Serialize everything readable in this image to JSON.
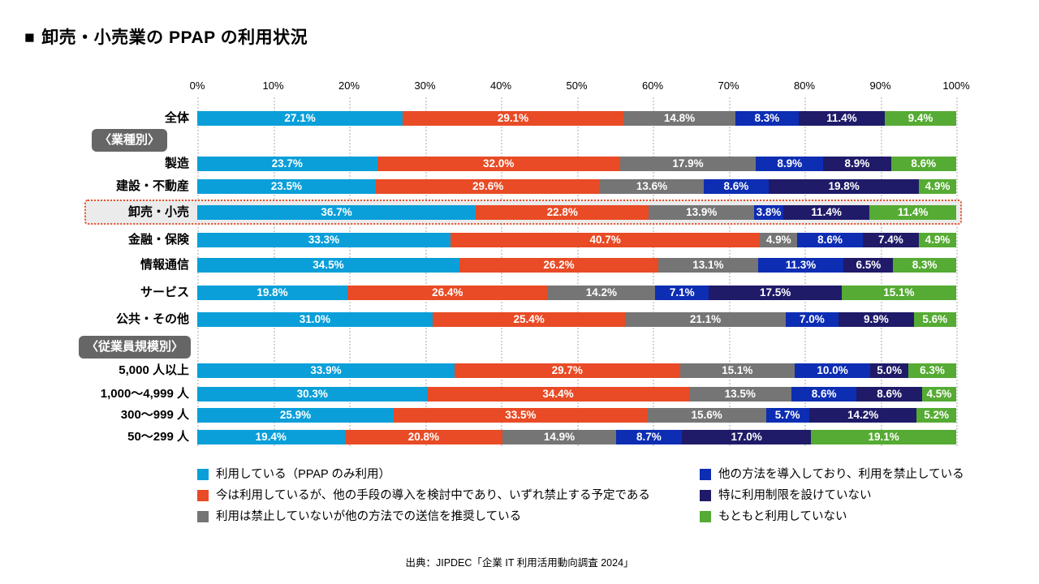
{
  "title": {
    "bullet": "■",
    "text": "卸売・小売業の PPAP の利用状況"
  },
  "source": "出典：JIPDEC「企業 IT 利用活用動向調査 2024」",
  "chart_data": {
    "type": "bar",
    "stacked": true,
    "orientation": "horizontal",
    "unit": "%",
    "x_range": [
      0,
      100
    ],
    "x_ticks": [
      "0%",
      "10%",
      "20%",
      "30%",
      "40%",
      "50%",
      "60%",
      "70%",
      "80%",
      "90%",
      "100%"
    ],
    "grid": "dotted-vertical",
    "legend_position": "bottom-two-columns",
    "highlight_border_color": "#E8502A",
    "highlight_background": "#EBEBEB",
    "series": [
      {
        "name": "利用している（PPAP のみ利用）",
        "color": "#0A9FD9"
      },
      {
        "name": "今は利用しているが、他の手段の導入を検討中であり、いずれ禁止する予定である",
        "color": "#E84B25"
      },
      {
        "name": "利用は禁止していないが他の方法での送信を推奨している",
        "color": "#757575"
      },
      {
        "name": "他の方法を導入しており、利用を禁止している",
        "color": "#0D2DB3"
      },
      {
        "name": "特に利用制限を設けていない",
        "color": "#1F1B68"
      },
      {
        "name": "もともと利用していない",
        "color": "#55AB33"
      }
    ],
    "rows": [
      {
        "type": "bar",
        "label": "全体",
        "values": [
          27.1,
          29.1,
          14.8,
          8.3,
          11.4,
          9.4
        ]
      },
      {
        "type": "group",
        "label": "〈業種別〉"
      },
      {
        "type": "bar",
        "label": "製造",
        "values": [
          23.7,
          32.0,
          17.9,
          8.9,
          8.9,
          8.6
        ]
      },
      {
        "type": "bar",
        "label": "建設・不動産",
        "values": [
          23.5,
          29.6,
          13.6,
          8.6,
          19.8,
          4.9
        ]
      },
      {
        "type": "bar",
        "label": "卸売・小売",
        "values": [
          36.7,
          22.8,
          13.9,
          3.8,
          11.4,
          11.4
        ],
        "highlighted": true
      },
      {
        "type": "bar",
        "label": "金融・保険",
        "values": [
          33.3,
          40.7,
          4.9,
          8.6,
          7.4,
          4.9
        ]
      },
      {
        "type": "bar",
        "label": "情報通信",
        "values": [
          34.5,
          26.2,
          13.1,
          11.3,
          6.5,
          8.3
        ]
      },
      {
        "type": "bar",
        "label": "サービス",
        "values": [
          19.8,
          26.4,
          14.2,
          7.1,
          17.5,
          15.1
        ]
      },
      {
        "type": "bar",
        "label": "公共・その他",
        "values": [
          31.0,
          25.4,
          21.1,
          7.0,
          9.9,
          5.6
        ]
      },
      {
        "type": "group",
        "label": "〈従業員規模別〉"
      },
      {
        "type": "bar",
        "label": "5,000 人以上",
        "values": [
          33.9,
          29.7,
          15.1,
          10.0,
          5.0,
          6.3
        ]
      },
      {
        "type": "bar",
        "label": "1,000〜4,999 人",
        "values": [
          30.3,
          34.4,
          13.5,
          8.6,
          8.6,
          4.5
        ]
      },
      {
        "type": "bar",
        "label": "300〜999 人",
        "values": [
          25.9,
          33.5,
          15.6,
          5.7,
          14.2,
          5.2
        ]
      },
      {
        "type": "bar",
        "label": "50〜299 人",
        "values": [
          19.4,
          20.8,
          14.9,
          8.7,
          17.0,
          19.1
        ]
      }
    ],
    "legend_columns": [
      [
        0,
        1,
        2
      ],
      [
        3,
        4,
        5
      ]
    ]
  }
}
